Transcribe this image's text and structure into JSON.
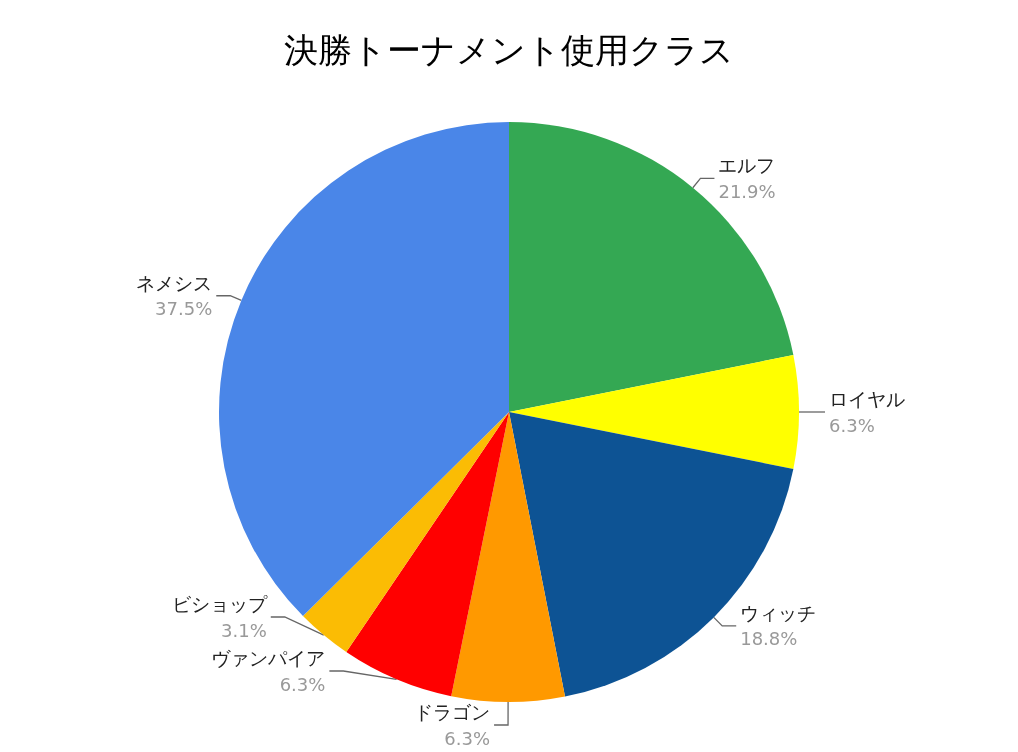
{
  "chart_data": {
    "type": "pie",
    "title": "決勝トーナメント使用クラス",
    "categories": [
      "エルフ",
      "ロイヤル",
      "ウィッチ",
      "ドラゴン",
      "ヴァンパイア",
      "ビショップ",
      "ネメシス"
    ],
    "values": [
      21.9,
      6.3,
      18.8,
      6.3,
      6.3,
      3.1,
      37.5
    ],
    "value_labels": [
      "21.9%",
      "6.3%",
      "18.8%",
      "6.3%",
      "6.3%",
      "3.1%",
      "37.5%"
    ],
    "colors": [
      "#34a853",
      "#ffff00",
      "#0d5394",
      "#ff9900",
      "#ff0000",
      "#fbbc04",
      "#4a86e8"
    ]
  }
}
